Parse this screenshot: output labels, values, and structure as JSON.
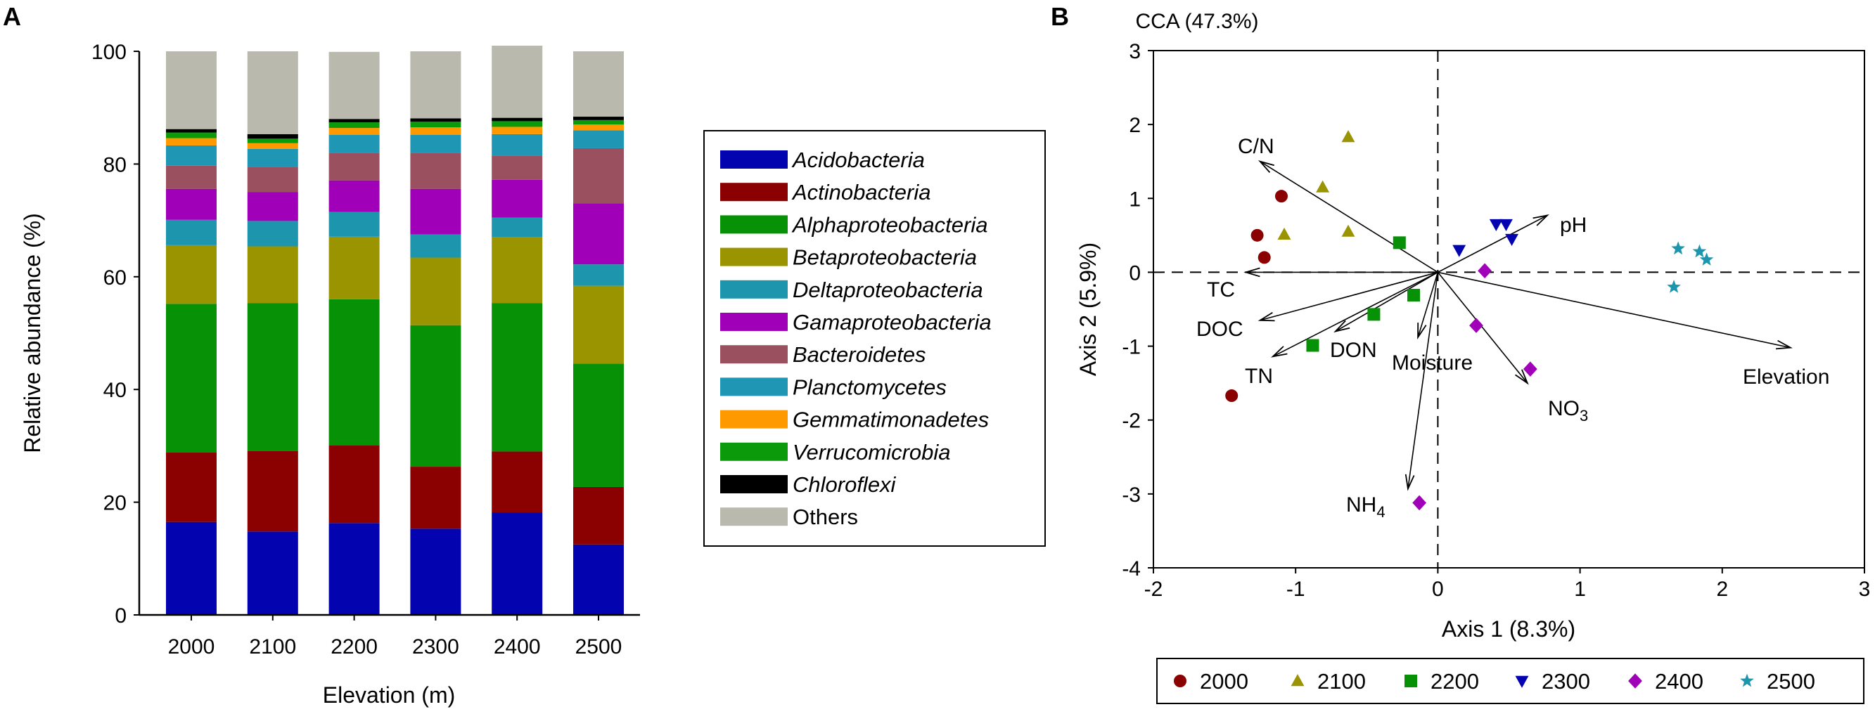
{
  "panel_a_letter": "A",
  "panel_b_letter": "B",
  "chart_data": [
    {
      "type": "bar",
      "stacked": true,
      "title": "",
      "xlabel": "Elevation (m)",
      "ylabel": "Relative abundance (%)",
      "ylim": [
        0,
        100
      ],
      "yticks": [
        "0",
        "20",
        "40",
        "60",
        "80",
        "100"
      ],
      "categories": [
        "2000",
        "2100",
        "2200",
        "2300",
        "2400",
        "2500"
      ],
      "legend_position": "right",
      "series": [
        {
          "name": "Acidobacteria",
          "color": "#0303b0",
          "italic": true,
          "values": [
            16.5,
            14.8,
            16.3,
            15.3,
            18.2,
            12.5
          ]
        },
        {
          "name": "Actinobacteria",
          "color": "#8b0000",
          "italic": true,
          "values": [
            12.3,
            14.3,
            13.8,
            11.0,
            10.8,
            10.2
          ]
        },
        {
          "name": "Alphaproteobacteria",
          "color": "#079107",
          "italic": true,
          "values": [
            26.4,
            26.2,
            25.9,
            25.1,
            26.3,
            21.9
          ]
        },
        {
          "name": "Betaproteobacteria",
          "color": "#999400",
          "italic": true,
          "values": [
            10.4,
            10.1,
            11.1,
            12.0,
            11.7,
            13.8
          ]
        },
        {
          "name": "Deltaproteobacteria",
          "color": "#1d95ad",
          "italic": true,
          "values": [
            4.5,
            4.5,
            4.4,
            4.1,
            3.5,
            3.8
          ]
        },
        {
          "name": "Gamaproteobacteria",
          "color": "#a000b8",
          "italic": true,
          "values": [
            5.5,
            5.1,
            5.6,
            8.1,
            6.7,
            10.8
          ]
        },
        {
          "name": "Bacteroidetes",
          "color": "#9b5060",
          "italic": true,
          "values": [
            4.1,
            4.5,
            4.9,
            6.4,
            4.3,
            9.8
          ]
        },
        {
          "name": "Planctomycetes",
          "color": "#1f97b4",
          "italic": true,
          "values": [
            3.6,
            3.2,
            3.2,
            3.2,
            3.8,
            3.2
          ]
        },
        {
          "name": "Gemmatimonadetes",
          "color": "#ff9900",
          "italic": true,
          "values": [
            1.3,
            1.0,
            1.2,
            1.3,
            1.3,
            1.0
          ]
        },
        {
          "name": "Verrucomicrobia",
          "color": "#0a9a0a",
          "italic": true,
          "values": [
            1.0,
            0.8,
            1.0,
            1.0,
            1.0,
            0.8
          ]
        },
        {
          "name": "Chloroflexi",
          "color": "#000000",
          "italic": true,
          "values": [
            0.6,
            0.8,
            0.6,
            0.6,
            0.6,
            0.6
          ]
        },
        {
          "name": "Others",
          "color": "#b9b9ae",
          "italic": false,
          "values": [
            13.8,
            14.7,
            11.9,
            11.9,
            12.8,
            11.6
          ]
        }
      ]
    },
    {
      "type": "scatter",
      "title": "CCA (47.3%)",
      "xlabel": "Axis 1 (8.3%)",
      "ylabel": "Axis 2 (5.9%)",
      "xlim": [
        -2,
        3
      ],
      "ylim": [
        -4,
        3
      ],
      "xticks": [
        "-2",
        "-1",
        "0",
        "1",
        "2",
        "3"
      ],
      "yticks": [
        "-4",
        "-3",
        "-2",
        "-1",
        "0",
        "1",
        "2",
        "3"
      ],
      "legend_position": "bottom",
      "series": [
        {
          "name": "2000",
          "marker": "circle",
          "color": "#8b0000",
          "x": [
            -1.1,
            -1.27,
            -1.22,
            -1.45
          ],
          "y": [
            1.03,
            0.5,
            0.2,
            -1.67
          ]
        },
        {
          "name": "2100",
          "marker": "triangle-up",
          "color": "#999400",
          "x": [
            -0.63,
            -0.81,
            -1.08,
            -0.63
          ],
          "y": [
            1.83,
            1.15,
            0.51,
            0.55
          ]
        },
        {
          "name": "2200",
          "marker": "square",
          "color": "#079107",
          "x": [
            -0.27,
            -0.88,
            -0.45,
            -0.17
          ],
          "y": [
            0.4,
            -0.99,
            -0.57,
            -0.31
          ]
        },
        {
          "name": "2300",
          "marker": "triangle-down",
          "color": "#0303b0",
          "x": [
            0.41,
            0.48,
            0.52,
            0.15
          ],
          "y": [
            0.65,
            0.65,
            0.45,
            0.3
          ]
        },
        {
          "name": "2400",
          "marker": "diamond",
          "color": "#a000b8",
          "x": [
            0.33,
            0.27,
            0.65,
            -0.13
          ],
          "y": [
            0.02,
            -0.72,
            -1.31,
            -3.12
          ]
        },
        {
          "name": "2500",
          "marker": "star",
          "color": "#1d95ad",
          "x": [
            1.69,
            1.84,
            1.89,
            1.66
          ],
          "y": [
            0.32,
            0.28,
            0.17,
            -0.2
          ]
        }
      ],
      "vectors": [
        {
          "name": "C/N",
          "x": -1.25,
          "y": 1.5
        },
        {
          "name": "pH",
          "x": 0.77,
          "y": 0.77
        },
        {
          "name": "TC",
          "x": -1.35,
          "y": 0.0
        },
        {
          "name": "DOC",
          "x": -1.25,
          "y": -0.65
        },
        {
          "name": "DON",
          "x": -0.72,
          "y": -0.8
        },
        {
          "name": "TN",
          "x": -1.16,
          "y": -1.14
        },
        {
          "name": "Moisture",
          "x": -0.14,
          "y": -0.88
        },
        {
          "name": "NO3",
          "x": 0.63,
          "y": -1.5
        },
        {
          "name": "NH4",
          "x": -0.21,
          "y": -2.93
        },
        {
          "name": "Elevation",
          "x": 2.48,
          "y": -1.02
        }
      ]
    }
  ],
  "cca_labels": {
    "C/N": "C/N",
    "pH": "pH",
    "TC": "TC",
    "DOC": "DOC",
    "DON": "DON",
    "TN": "TN",
    "Moisture": "Moisture",
    "NO3_main": "NO",
    "NO3_sub": "3",
    "NH4_main": "NH",
    "NH4_sub": "4",
    "Elevation": "Elevation"
  }
}
